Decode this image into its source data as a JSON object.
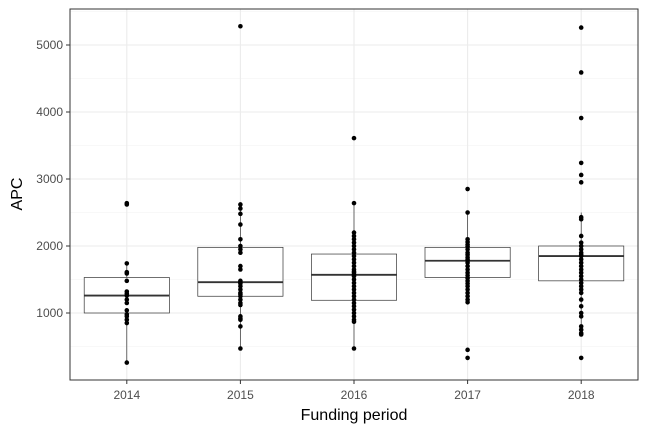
{
  "chart_data": {
    "type": "box",
    "title": "",
    "xlabel": "Funding period",
    "ylabel": "APC",
    "ylim": [
      0,
      5500
    ],
    "yticks": [
      1000,
      2000,
      3000,
      4000,
      5000
    ],
    "grid": true,
    "categories": [
      "2014",
      "2015",
      "2016",
      "2017",
      "2018"
    ],
    "boxes": [
      {
        "category": "2014",
        "q1": 1000,
        "median": 1260,
        "q3": 1530,
        "whisker_low": 260,
        "whisker_high": 1740
      },
      {
        "category": "2015",
        "q1": 1250,
        "median": 1460,
        "q3": 1980,
        "whisker_low": 470,
        "whisker_high": 2620
      },
      {
        "category": "2016",
        "q1": 1190,
        "median": 1570,
        "q3": 1880,
        "whisker_low": 470,
        "whisker_high": 2640
      },
      {
        "category": "2017",
        "q1": 1530,
        "median": 1780,
        "q3": 1980,
        "whisker_low": 1160,
        "whisker_high": 2500
      },
      {
        "category": "2018",
        "q1": 1480,
        "median": 1850,
        "q3": 2000,
        "whisker_low": 680,
        "whisker_high": 2500
      }
    ],
    "points": [
      {
        "category": "2014",
        "values": [
          2640,
          2620,
          1740,
          1610,
          1590,
          1480,
          1320,
          1290,
          1260,
          1200,
          1150,
          1040,
          980,
          950,
          900,
          850,
          260
        ]
      },
      {
        "category": "2015",
        "values": [
          5280,
          2620,
          2560,
          2480,
          2320,
          2100,
          2000,
          1950,
          1900,
          1700,
          1650,
          1480,
          1460,
          1440,
          1400,
          1350,
          1300,
          1280,
          1250,
          1200,
          1150,
          1120,
          950,
          920,
          900,
          800,
          470
        ]
      },
      {
        "category": "2016",
        "values": [
          3610,
          2640,
          2200,
          2150,
          2100,
          2050,
          2000,
          1950,
          1900,
          1850,
          1800,
          1750,
          1700,
          1650,
          1620,
          1600,
          1570,
          1550,
          1500,
          1450,
          1400,
          1350,
          1300,
          1250,
          1200,
          1150,
          1100,
          1050,
          1000,
          950,
          900,
          870,
          470
        ]
      },
      {
        "category": "2017",
        "values": [
          2850,
          2500,
          2100,
          2060,
          2020,
          1990,
          1950,
          1900,
          1870,
          1830,
          1800,
          1780,
          1750,
          1700,
          1650,
          1600,
          1560,
          1520,
          1480,
          1440,
          1400,
          1350,
          1300,
          1250,
          1200,
          1160,
          450,
          330
        ]
      },
      {
        "category": "2018",
        "values": [
          5260,
          4590,
          3910,
          3240,
          3060,
          2950,
          2430,
          2400,
          2150,
          2050,
          2000,
          1950,
          1900,
          1870,
          1850,
          1800,
          1750,
          1700,
          1650,
          1600,
          1550,
          1500,
          1450,
          1400,
          1350,
          1300,
          1200,
          1100,
          1000,
          950,
          800,
          750,
          700,
          680,
          330
        ]
      }
    ]
  }
}
